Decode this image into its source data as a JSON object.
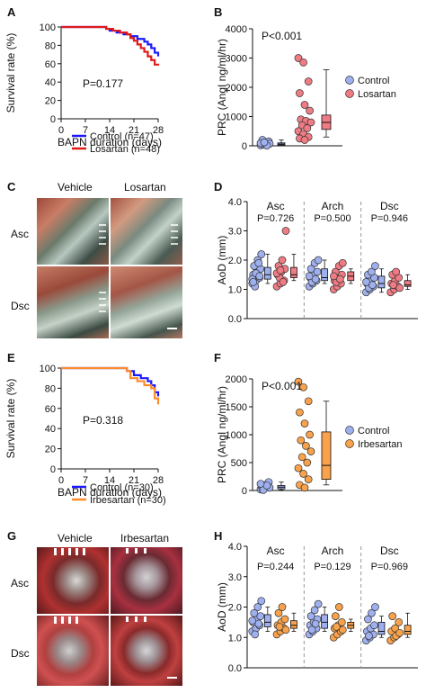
{
  "panels": {
    "A": {
      "label": "A"
    },
    "B": {
      "label": "B"
    },
    "C": {
      "label": "C"
    },
    "D": {
      "label": "D"
    },
    "E": {
      "label": "E"
    },
    "F": {
      "label": "F"
    },
    "G": {
      "label": "G"
    },
    "H": {
      "label": "H"
    }
  },
  "photos_C": {
    "col1": "Vehicle",
    "col2": "Losartan",
    "row1": "Asc",
    "row2": "Dsc"
  },
  "photos_G": {
    "col1": "Vehicle",
    "col2": "Irbesartan",
    "row1": "Asc",
    "row2": "Dsc"
  },
  "chart_data": [
    {
      "id": "A",
      "type": "line",
      "xlabel": "BAPN duration (days)",
      "ylabel": "Survival rate (%)",
      "xlim": [
        0,
        28
      ],
      "ylim": [
        0,
        100
      ],
      "xticks": [
        0,
        7,
        14,
        21,
        28
      ],
      "yticks": [
        0,
        20,
        40,
        60,
        80,
        100
      ],
      "annotation": "P=0.177",
      "legend_position": "bottom-left",
      "series": [
        {
          "name": "Control (n=47)",
          "color": "#1a1aff",
          "x": [
            0,
            12,
            13,
            14,
            16,
            18,
            20,
            22,
            24,
            25,
            26,
            27,
            28
          ],
          "y": [
            100,
            100,
            98,
            96,
            94,
            92,
            90,
            87,
            84,
            81,
            77,
            72,
            68
          ]
        },
        {
          "name": "Losartan (n=48)",
          "color": "#e01919",
          "x": [
            0,
            12,
            13,
            15,
            17,
            19,
            20,
            21,
            22,
            23,
            24,
            25,
            26,
            27,
            28
          ],
          "y": [
            100,
            100,
            98,
            96,
            94,
            92,
            88,
            85,
            81,
            77,
            73,
            68,
            64,
            59,
            58
          ]
        }
      ]
    },
    {
      "id": "B",
      "type": "scatter",
      "ylabel": "PRC (AngI ng/ml/hr)",
      "ylim": [
        0,
        4000
      ],
      "yticks": [
        0,
        1000,
        2000,
        3000,
        4000
      ],
      "annotation": "P<0.001",
      "legend_position": "right",
      "series": [
        {
          "name": "Control",
          "color": "#9fb0ef",
          "values": [
            20,
            40,
            60,
            80,
            100,
            150,
            200,
            30,
            70,
            50,
            10,
            90,
            120
          ],
          "box": {
            "min": 10,
            "q1": 30,
            "median": 60,
            "q3": 100,
            "max": 200
          }
        },
        {
          "name": "Losartan",
          "color": "#ef7b84",
          "values": [
            3000,
            2850,
            2200,
            1800,
            1400,
            1200,
            900,
            850,
            800,
            700,
            600,
            500,
            400,
            300,
            250,
            200
          ],
          "box": {
            "min": 300,
            "q1": 560,
            "median": 800,
            "q3": 1050,
            "max": 2600
          }
        }
      ]
    },
    {
      "id": "D",
      "type": "scatter",
      "ylabel": "AoD (mm)",
      "ylim": [
        0,
        4
      ],
      "yticks": [
        0.0,
        1.0,
        2.0,
        3.0,
        4.0
      ],
      "groups": [
        {
          "name": "Asc",
          "p": "P=0.726",
          "a": [
            1.2,
            1.3,
            1.4,
            1.5,
            1.6,
            1.7,
            1.8,
            2.0,
            2.2,
            1.1,
            1.9,
            1.35,
            1.55,
            1.45,
            1.25
          ],
          "a_box": {
            "min": 1.2,
            "q1": 1.35,
            "median": 1.5,
            "q3": 1.75,
            "max": 2.2
          },
          "b": [
            1.1,
            1.2,
            1.3,
            1.5,
            1.6,
            1.7,
            1.8,
            2.0,
            3.0,
            1.4,
            1.25,
            1.55,
            1.65
          ],
          "b_box": {
            "min": 1.3,
            "q1": 1.4,
            "median": 1.5,
            "q3": 1.75,
            "max": 2.2
          }
        },
        {
          "name": "Arch",
          "p": "P=0.500",
          "a": [
            1.1,
            1.2,
            1.3,
            1.4,
            1.5,
            1.6,
            1.7,
            1.9,
            2.0,
            1.25,
            1.35,
            1.45
          ],
          "a_box": {
            "min": 1.2,
            "q1": 1.3,
            "median": 1.4,
            "q3": 1.7,
            "max": 2.0
          },
          "b": [
            1.0,
            1.1,
            1.2,
            1.3,
            1.4,
            1.5,
            1.6,
            1.8,
            1.9,
            1.25,
            1.35,
            1.45
          ],
          "b_box": {
            "min": 1.2,
            "q1": 1.3,
            "median": 1.45,
            "q3": 1.6,
            "max": 1.7
          }
        },
        {
          "name": "Dsc",
          "p": "P=0.946",
          "a": [
            0.9,
            1.0,
            1.1,
            1.2,
            1.3,
            1.4,
            1.5,
            1.6,
            1.8,
            1.05,
            1.15,
            1.25
          ],
          "a_box": {
            "min": 0.9,
            "q1": 1.05,
            "median": 1.2,
            "q3": 1.45,
            "max": 1.7
          },
          "b": [
            0.9,
            1.0,
            1.1,
            1.2,
            1.3,
            1.4,
            1.5,
            1.6,
            1.05,
            1.15
          ],
          "b_box": {
            "min": 1.0,
            "q1": 1.1,
            "median": 1.15,
            "q3": 1.3,
            "max": 1.5
          }
        }
      ],
      "colors": {
        "a": "#9fb0ef",
        "b": "#ef7b84"
      }
    },
    {
      "id": "E",
      "type": "line",
      "xlabel": "BAPN duration (days)",
      "ylabel": "Survival rate (%)",
      "xlim": [
        0,
        28
      ],
      "ylim": [
        0,
        100
      ],
      "xticks": [
        0,
        7,
        14,
        21,
        28
      ],
      "yticks": [
        0,
        20,
        40,
        60,
        80,
        100
      ],
      "annotation": "P=0.318",
      "legend_position": "bottom-left",
      "series": [
        {
          "name": "Control (n=30)",
          "color": "#1a1aff",
          "x": [
            0,
            18,
            19,
            21,
            23,
            25,
            26,
            27,
            28
          ],
          "y": [
            100,
            100,
            97,
            93,
            90,
            87,
            83,
            76,
            72
          ]
        },
        {
          "name": "Irbesartan (n=30)",
          "color": "#ff8a2b",
          "x": [
            0,
            18,
            19,
            20,
            22,
            24,
            26,
            27,
            28
          ],
          "y": [
            100,
            100,
            97,
            90,
            87,
            83,
            80,
            70,
            64
          ]
        }
      ]
    },
    {
      "id": "F",
      "type": "scatter",
      "ylabel": "PRC (AngI ng/ml/hr)",
      "ylim": [
        0,
        2000
      ],
      "yticks": [
        0,
        500,
        1000,
        1500,
        2000
      ],
      "annotation": "P<0.001",
      "legend_position": "right",
      "series": [
        {
          "name": "Control",
          "color": "#9fb0ef",
          "values": [
            20,
            40,
            60,
            80,
            100,
            150,
            30,
            70,
            50,
            10,
            90,
            120
          ],
          "box": {
            "min": 10,
            "q1": 30,
            "median": 60,
            "q3": 90,
            "max": 150
          }
        },
        {
          "name": "Irbesartan",
          "color": "#f9a24b",
          "values": [
            1950,
            1850,
            1600,
            1400,
            1200,
            1000,
            900,
            800,
            700,
            600,
            500,
            400,
            300,
            200,
            100,
            50
          ],
          "box": {
            "min": 100,
            "q1": 200,
            "median": 450,
            "q3": 1050,
            "max": 1600
          }
        }
      ]
    },
    {
      "id": "H",
      "type": "scatter",
      "ylabel": "AoD (mm)",
      "ylim": [
        0,
        4
      ],
      "yticks": [
        0.0,
        1.0,
        2.0,
        3.0,
        4.0
      ],
      "groups": [
        {
          "name": "Asc",
          "p": "P=0.244",
          "a": [
            1.2,
            1.3,
            1.4,
            1.5,
            1.6,
            1.7,
            1.8,
            2.0,
            2.2,
            1.1,
            1.45,
            1.55
          ],
          "a_box": {
            "min": 1.2,
            "q1": 1.35,
            "median": 1.5,
            "q3": 1.75,
            "max": 2.0
          },
          "b": [
            1.1,
            1.2,
            1.3,
            1.4,
            1.5,
            1.6,
            1.8,
            2.0,
            1.25,
            1.35
          ],
          "b_box": {
            "min": 1.2,
            "q1": 1.3,
            "median": 1.4,
            "q3": 1.55,
            "max": 1.8
          }
        },
        {
          "name": "Arch",
          "p": "P=0.129",
          "a": [
            1.1,
            1.2,
            1.3,
            1.4,
            1.5,
            1.6,
            1.7,
            1.9,
            2.1,
            1.25,
            1.45
          ],
          "a_box": {
            "min": 1.2,
            "q1": 1.3,
            "median": 1.5,
            "q3": 1.75,
            "max": 2.0
          },
          "b": [
            1.0,
            1.1,
            1.2,
            1.3,
            1.4,
            1.5,
            1.7,
            2.0,
            1.25,
            1.35
          ],
          "b_box": {
            "min": 1.2,
            "q1": 1.3,
            "median": 1.4,
            "q3": 1.5,
            "max": 1.6
          }
        },
        {
          "name": "Dsc",
          "p": "P=0.969",
          "a": [
            0.9,
            1.0,
            1.1,
            1.2,
            1.3,
            1.4,
            1.6,
            1.8,
            2.0,
            1.05
          ],
          "a_box": {
            "min": 1.0,
            "q1": 1.1,
            "median": 1.2,
            "q3": 1.5,
            "max": 1.7
          },
          "b": [
            0.9,
            1.0,
            1.1,
            1.2,
            1.3,
            1.5,
            1.7,
            1.05,
            1.15
          ],
          "b_box": {
            "min": 1.0,
            "q1": 1.1,
            "median": 1.2,
            "q3": 1.4,
            "max": 1.8
          }
        }
      ],
      "colors": {
        "a": "#9fb0ef",
        "b": "#f9a24b"
      }
    }
  ]
}
